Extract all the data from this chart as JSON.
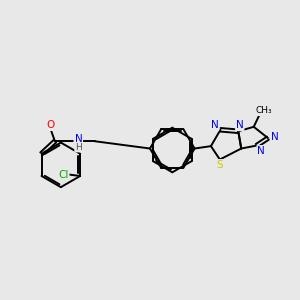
{
  "bg_color": "#e8e8e8",
  "bond_color": "#000000",
  "atom_colors": {
    "O": "#ff0000",
    "N": "#0000ee",
    "S": "#cccc00",
    "Cl": "#00aa00",
    "C": "#000000",
    "H": "#555555"
  },
  "lw": 1.4
}
